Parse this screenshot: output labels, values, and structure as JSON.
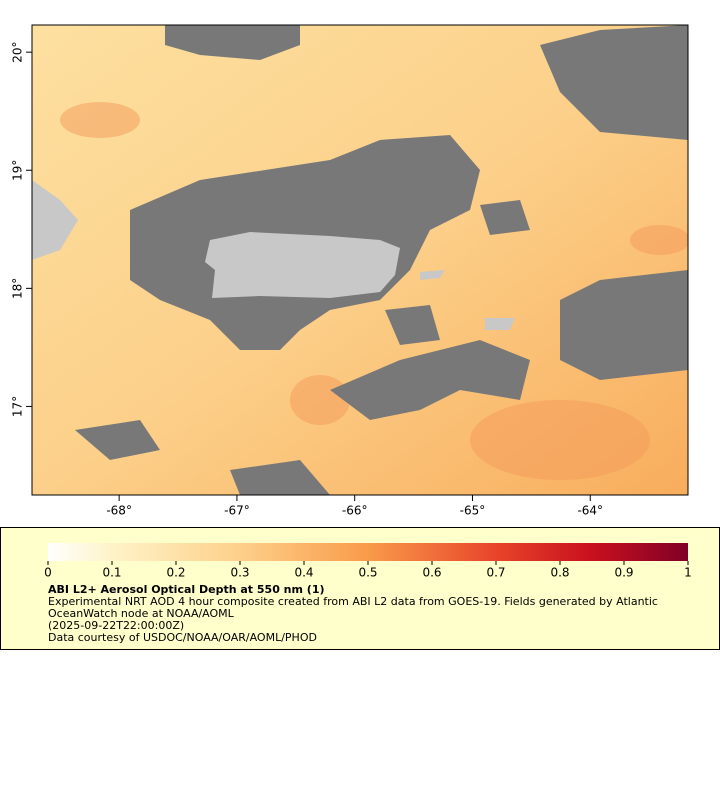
{
  "map": {
    "xlim": [
      -68.74,
      -63.17
    ],
    "ylim": [
      16.25,
      20.23
    ],
    "xticks": [
      {
        "value": -68,
        "label": "-68°"
      },
      {
        "value": -67,
        "label": "-67°"
      },
      {
        "value": -66,
        "label": "-66°"
      },
      {
        "value": -65,
        "label": "-65°"
      },
      {
        "value": -64,
        "label": "-64°"
      }
    ],
    "yticks": [
      {
        "value": 17,
        "label": "17°"
      },
      {
        "value": 18,
        "label": "18°"
      },
      {
        "value": 19,
        "label": "19°"
      },
      {
        "value": 20,
        "label": "20°"
      }
    ]
  },
  "colorbar": {
    "lim": [
      0,
      1
    ],
    "ticks": [
      0,
      0.1,
      0.2,
      0.3,
      0.4,
      0.5,
      0.6,
      0.7,
      0.8,
      0.9,
      1
    ]
  },
  "legend": {
    "title": "ABI L2+ Aerosol Optical Depth at 550 nm (1)",
    "lines": [
      "Experimental NRT AOD 4 hour composite created from ABI L2 data from GOES-19. Fields generated by Atlantic",
      "OceanWatch node at NOAA/AOML",
      "(2025-09-22T22:00:00Z)",
      "Data courtesy of USDOC/NOAA/OAR/AOML/PHOD"
    ]
  }
}
